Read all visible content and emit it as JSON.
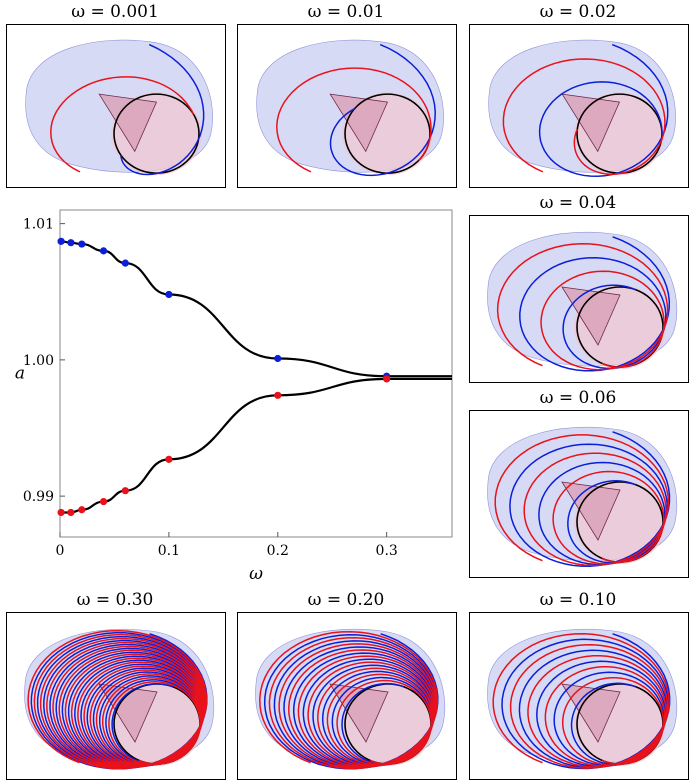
{
  "panels": [
    {
      "id": "p0001",
      "label": "ω = 0.001",
      "turns": 0.6
    },
    {
      "id": "p001",
      "label": "ω = 0.01",
      "turns": 0.8
    },
    {
      "id": "p002",
      "label": "ω = 0.02",
      "turns": 1.2
    },
    {
      "id": "p004",
      "label": "ω = 0.04",
      "turns": 2
    },
    {
      "id": "p006",
      "label": "ω = 0.06",
      "turns": 3
    },
    {
      "id": "p030",
      "label": "ω = 0.30",
      "turns": 14
    },
    {
      "id": "p020",
      "label": "ω = 0.20",
      "turns": 9
    },
    {
      "id": "p010",
      "label": "ω = 0.10",
      "turns": 5
    }
  ],
  "colors": {
    "blue": "#0b1fd6",
    "red": "#e8121b",
    "surface": "#c9cdf2",
    "cone": "#d9a0b8",
    "curve": "#000000"
  },
  "chart_data": {
    "type": "line",
    "xlabel": "ω",
    "ylabel": "a",
    "xlim": [
      0,
      0.36
    ],
    "ylim": [
      0.987,
      1.011
    ],
    "xticks": [
      {
        "v": 0,
        "label": "0"
      },
      {
        "v": 0.1,
        "label": "0.1"
      },
      {
        "v": 0.2,
        "label": "0.2"
      },
      {
        "v": 0.3,
        "label": "0.3"
      }
    ],
    "yticks": [
      {
        "v": 0.99,
        "label": "0.99"
      },
      {
        "v": 1.0,
        "label": "1.00"
      },
      {
        "v": 1.01,
        "label": "1.01"
      }
    ],
    "series": [
      {
        "color": "blue",
        "x": [
          0.001,
          0.01,
          0.02,
          0.04,
          0.06,
          0.1,
          0.2,
          0.3
        ],
        "y": [
          1.0087,
          1.0086,
          1.0085,
          1.008,
          1.0071,
          1.0048,
          1.0001,
          0.9988
        ]
      },
      {
        "color": "red",
        "x": [
          0.001,
          0.01,
          0.02,
          0.04,
          0.06,
          0.1,
          0.2,
          0.3
        ],
        "y": [
          0.9888,
          0.9888,
          0.989,
          0.9896,
          0.9904,
          0.9927,
          0.9974,
          0.9986
        ]
      }
    ]
  }
}
